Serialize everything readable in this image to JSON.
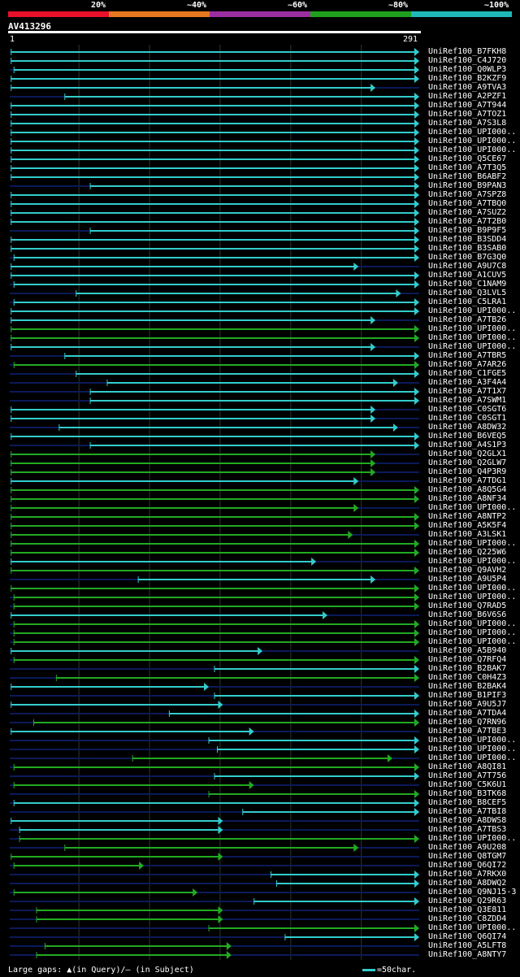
{
  "legend": {
    "labels": [
      "20%",
      "~40%",
      "~60%",
      "~80%",
      "~100%"
    ],
    "colors": [
      "#e8102a",
      "#e87820",
      "#9b2ea0",
      "#1ea01e",
      "#1fb8b8"
    ]
  },
  "query": {
    "id": "AV413296",
    "start": "1",
    "end": "291"
  },
  "footer": {
    "gap_text": "Large gaps: ▲(in Query)/– (in Subject)",
    "scale_text": "=50char."
  },
  "colors": {
    "cyan": "#33cccc",
    "green": "#22aa22",
    "navy": "#0a1a5a",
    "grid": "#2a3a2a"
  },
  "chart_data": {
    "type": "alignment",
    "query_length": 291,
    "grid_positions": [
      50,
      100,
      150,
      200,
      250
    ],
    "hits": [
      {
        "label": "UniRef100_B7FKH8",
        "start": 2,
        "end": 291,
        "color": "cyan"
      },
      {
        "label": "UniRef100_C4J720",
        "start": 2,
        "end": 291,
        "color": "cyan"
      },
      {
        "label": "UniRef100_Q0WLP3",
        "start": 4,
        "end": 291,
        "color": "cyan"
      },
      {
        "label": "UniRef100_B2KZF9",
        "start": 2,
        "end": 291,
        "color": "cyan"
      },
      {
        "label": "UniRef100_A9TVA3",
        "start": 2,
        "end": 260,
        "color": "cyan"
      },
      {
        "label": "UniRef100_A2PZF1",
        "start": 40,
        "end": 291,
        "color": "cyan"
      },
      {
        "label": "UniRef100_A7T944",
        "start": 2,
        "end": 291,
        "color": "cyan"
      },
      {
        "label": "UniRef100_A7TOZ1",
        "start": 2,
        "end": 291,
        "color": "cyan"
      },
      {
        "label": "UniRef100_A7S3L8",
        "start": 2,
        "end": 291,
        "color": "cyan"
      },
      {
        "label": "UniRef100_UPI000..",
        "start": 2,
        "end": 291,
        "color": "cyan"
      },
      {
        "label": "UniRef100_UPI000..",
        "start": 2,
        "end": 291,
        "color": "cyan"
      },
      {
        "label": "UniRef100_UPI000..",
        "start": 2,
        "end": 291,
        "color": "cyan"
      },
      {
        "label": "UniRef100_Q5CE67",
        "start": 2,
        "end": 291,
        "color": "cyan"
      },
      {
        "label": "UniRef100_A7T3Q5",
        "start": 2,
        "end": 291,
        "color": "cyan"
      },
      {
        "label": "UniRef100_B6ABF2",
        "start": 2,
        "end": 291,
        "color": "cyan"
      },
      {
        "label": "UniRef100_B9PAN3",
        "start": 58,
        "end": 291,
        "color": "cyan"
      },
      {
        "label": "UniRef100_A7SPZ8",
        "start": 2,
        "end": 291,
        "color": "cyan"
      },
      {
        "label": "UniRef100_A7TBQ0",
        "start": 2,
        "end": 291,
        "color": "cyan"
      },
      {
        "label": "UniRef100_A7SUZ2",
        "start": 2,
        "end": 291,
        "color": "cyan"
      },
      {
        "label": "UniRef100_A7T2B0",
        "start": 2,
        "end": 291,
        "color": "cyan"
      },
      {
        "label": "UniRef100_B9P9F5",
        "start": 58,
        "end": 291,
        "color": "cyan"
      },
      {
        "label": "UniRef100_B3SDD4",
        "start": 2,
        "end": 291,
        "color": "cyan"
      },
      {
        "label": "UniRef100_B3SAB0",
        "start": 2,
        "end": 291,
        "color": "cyan"
      },
      {
        "label": "UniRef100_B7G3Q0",
        "start": 4,
        "end": 291,
        "color": "cyan"
      },
      {
        "label": "UniRef100_A9U7C8",
        "start": 2,
        "end": 248,
        "color": "cyan"
      },
      {
        "label": "UniRef100_A1CUV5",
        "start": 2,
        "end": 291,
        "color": "cyan"
      },
      {
        "label": "UniRef100_C1NAM9",
        "start": 4,
        "end": 291,
        "color": "cyan"
      },
      {
        "label": "UniRef100_Q3LVL5",
        "start": 48,
        "end": 278,
        "color": "cyan"
      },
      {
        "label": "UniRef100_C5LRA1",
        "start": 4,
        "end": 291,
        "color": "cyan"
      },
      {
        "label": "UniRef100_UPI000..",
        "start": 2,
        "end": 291,
        "color": "cyan"
      },
      {
        "label": "UniRef100_A7TB26",
        "start": 2,
        "end": 260,
        "color": "cyan"
      },
      {
        "label": "UniRef100_UPI000..",
        "start": 2,
        "end": 291,
        "color": "green"
      },
      {
        "label": "UniRef100_UPI000..",
        "start": 2,
        "end": 291,
        "color": "green"
      },
      {
        "label": "UniRef100_UPI000..",
        "start": 2,
        "end": 260,
        "color": "cyan"
      },
      {
        "label": "UniRef100_A7TBR5",
        "start": 40,
        "end": 291,
        "color": "cyan"
      },
      {
        "label": "UniRef100_A7AR26",
        "start": 4,
        "end": 291,
        "color": "green"
      },
      {
        "label": "UniRef100_C1FGE5",
        "start": 48,
        "end": 291,
        "color": "cyan"
      },
      {
        "label": "UniRef100_A3F4A4",
        "start": 70,
        "end": 276,
        "color": "cyan"
      },
      {
        "label": "UniRef100_A7T1X7",
        "start": 58,
        "end": 291,
        "color": "cyan"
      },
      {
        "label": "UniRef100_A7SWM1",
        "start": 58,
        "end": 291,
        "color": "cyan"
      },
      {
        "label": "UniRef100_C0SGT6",
        "start": 2,
        "end": 260,
        "color": "cyan"
      },
      {
        "label": "UniRef100_C0SGT1",
        "start": 2,
        "end": 260,
        "color": "cyan"
      },
      {
        "label": "UniRef100_A8DW32",
        "start": 36,
        "end": 276,
        "color": "cyan"
      },
      {
        "label": "UniRef100_B6VEQ5",
        "start": 2,
        "end": 291,
        "color": "cyan"
      },
      {
        "label": "UniRef100_A4S1P3",
        "start": 58,
        "end": 291,
        "color": "cyan"
      },
      {
        "label": "UniRef100_Q2GLX1",
        "start": 2,
        "end": 260,
        "color": "green"
      },
      {
        "label": "UniRef100_Q2GLW7",
        "start": 2,
        "end": 260,
        "color": "green"
      },
      {
        "label": "UniRef100_Q4P3R9",
        "start": 2,
        "end": 260,
        "color": "green"
      },
      {
        "label": "UniRef100_A7TDG1",
        "start": 2,
        "end": 248,
        "color": "cyan"
      },
      {
        "label": "UniRef100_A8Q5G4",
        "start": 2,
        "end": 291,
        "color": "green"
      },
      {
        "label": "UniRef100_A8NF34",
        "start": 2,
        "end": 291,
        "color": "green"
      },
      {
        "label": "UniRef100_UPI000..",
        "start": 2,
        "end": 248,
        "color": "green"
      },
      {
        "label": "UniRef100_A8NTP2",
        "start": 2,
        "end": 291,
        "color": "green"
      },
      {
        "label": "UniRef100_A5K5F4",
        "start": 2,
        "end": 291,
        "color": "green"
      },
      {
        "label": "UniRef100_A3LSK1",
        "start": 2,
        "end": 244,
        "color": "green"
      },
      {
        "label": "UniRef100_UPI000..",
        "start": 2,
        "end": 291,
        "color": "green"
      },
      {
        "label": "UniRef100_Q225W6",
        "start": 2,
        "end": 291,
        "color": "green"
      },
      {
        "label": "UniRef100_UPI000..",
        "start": 2,
        "end": 218,
        "color": "cyan"
      },
      {
        "label": "UniRef100_Q9AVH2",
        "start": 2,
        "end": 291,
        "color": "green"
      },
      {
        "label": "UniRef100_A9U5P4",
        "start": 92,
        "end": 260,
        "color": "cyan"
      },
      {
        "label": "UniRef100_UPI000..",
        "start": 2,
        "end": 291,
        "color": "green"
      },
      {
        "label": "UniRef100_UPI000..",
        "start": 4,
        "end": 291,
        "color": "green"
      },
      {
        "label": "UniRef100_Q7RAD5",
        "start": 4,
        "end": 291,
        "color": "green"
      },
      {
        "label": "UniRef100_B6V6S6",
        "start": 2,
        "end": 226,
        "color": "cyan"
      },
      {
        "label": "UniRef100_UPI000..",
        "start": 4,
        "end": 291,
        "color": "green"
      },
      {
        "label": "UniRef100_UPI000..",
        "start": 4,
        "end": 291,
        "color": "green"
      },
      {
        "label": "UniRef100_UPI000..",
        "start": 4,
        "end": 291,
        "color": "green"
      },
      {
        "label": "UniRef100_A5B940",
        "start": 2,
        "end": 180,
        "color": "cyan"
      },
      {
        "label": "UniRef100_Q7RFQ4",
        "start": 4,
        "end": 291,
        "color": "green"
      },
      {
        "label": "UniRef100_B2BAK7",
        "start": 146,
        "end": 291,
        "color": "cyan"
      },
      {
        "label": "UniRef100_C0H4Z3",
        "start": 34,
        "end": 291,
        "color": "green"
      },
      {
        "label": "UniRef100_B2BAK4",
        "start": 2,
        "end": 142,
        "color": "cyan"
      },
      {
        "label": "UniRef100_B1PIF3",
        "start": 146,
        "end": 291,
        "color": "cyan"
      },
      {
        "label": "UniRef100_A9U5J7",
        "start": 2,
        "end": 152,
        "color": "cyan"
      },
      {
        "label": "UniRef100_A7TDA4",
        "start": 114,
        "end": 291,
        "color": "cyan"
      },
      {
        "label": "UniRef100_Q7RN96",
        "start": 18,
        "end": 291,
        "color": "green"
      },
      {
        "label": "UniRef100_A7TBE3",
        "start": 2,
        "end": 174,
        "color": "cyan"
      },
      {
        "label": "UniRef100_UPI000..",
        "start": 142,
        "end": 291,
        "color": "cyan"
      },
      {
        "label": "UniRef100_UPI000..",
        "start": 148,
        "end": 291,
        "color": "cyan"
      },
      {
        "label": "UniRef100_UPI000..",
        "start": 88,
        "end": 272,
        "color": "green"
      },
      {
        "label": "UniRef100_A8QI81",
        "start": 4,
        "end": 291,
        "color": "green"
      },
      {
        "label": "UniRef100_A7T756",
        "start": 146,
        "end": 291,
        "color": "cyan"
      },
      {
        "label": "UniRef100_C5K6U1",
        "start": 4,
        "end": 174,
        "color": "green"
      },
      {
        "label": "UniRef100_B3TK68",
        "start": 142,
        "end": 291,
        "color": "green"
      },
      {
        "label": "UniRef100_B8CEF5",
        "start": 4,
        "end": 291,
        "color": "cyan"
      },
      {
        "label": "UniRef100_A7TBI8",
        "start": 166,
        "end": 291,
        "color": "cyan"
      },
      {
        "label": "UniRef100_A8DWS8",
        "start": 2,
        "end": 152,
        "color": "cyan"
      },
      {
        "label": "UniRef100_A7TBS3",
        "start": 8,
        "end": 152,
        "color": "cyan"
      },
      {
        "label": "UniRef100_UPI000..",
        "start": 8,
        "end": 291,
        "color": "green"
      },
      {
        "label": "UniRef100_A9U208",
        "start": 40,
        "end": 248,
        "color": "green"
      },
      {
        "label": "UniRef100_Q8TGM7",
        "start": 2,
        "end": 152,
        "color": "green"
      },
      {
        "label": "UniRef100_Q6QI72",
        "start": 4,
        "end": 96,
        "color": "green"
      },
      {
        "label": "UniRef100_A7RKX0",
        "start": 186,
        "end": 291,
        "color": "cyan"
      },
      {
        "label": "UniRef100_A8DWQ2",
        "start": 190,
        "end": 291,
        "color": "cyan"
      },
      {
        "label": "UniRef100_Q9NJ15-3",
        "start": 4,
        "end": 134,
        "color": "green"
      },
      {
        "label": "UniRef100_Q29R63",
        "start": 174,
        "end": 291,
        "color": "cyan"
      },
      {
        "label": "UniRef100_Q3E811",
        "start": 20,
        "end": 152,
        "color": "green"
      },
      {
        "label": "UniRef100_C8ZDD4",
        "start": 20,
        "end": 152,
        "color": "green"
      },
      {
        "label": "UniRef100_UPI000..",
        "start": 142,
        "end": 291,
        "color": "green"
      },
      {
        "label": "UniRef100_Q6QI74",
        "start": 196,
        "end": 291,
        "color": "cyan"
      },
      {
        "label": "UniRef100_A5LFT8",
        "start": 26,
        "end": 158,
        "color": "green"
      },
      {
        "label": "UniRef100_A8NTY7",
        "start": 20,
        "end": 158,
        "color": "green"
      }
    ]
  }
}
